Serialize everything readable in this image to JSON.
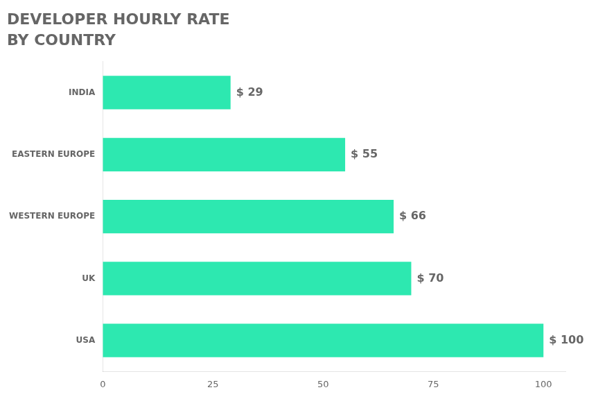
{
  "chart_data": {
    "type": "bar",
    "orientation": "horizontal",
    "title": "DEVELOPER HOURLY RATE",
    "subtitle": "BY COUNTRY",
    "categories": [
      "INDIA",
      "EASTERN EUROPE",
      "WESTERN EUROPE",
      "UK",
      "USA"
    ],
    "values": [
      29,
      55,
      66,
      70,
      100
    ],
    "value_labels": [
      "$ 29",
      "$ 55",
      "$ 66",
      "$ 70",
      "$ 100"
    ],
    "data_labels": true,
    "color": "#2de8b0",
    "xlim": [
      0,
      105
    ],
    "xticks": [
      0,
      25,
      50,
      75,
      100
    ],
    "grid": false
  }
}
